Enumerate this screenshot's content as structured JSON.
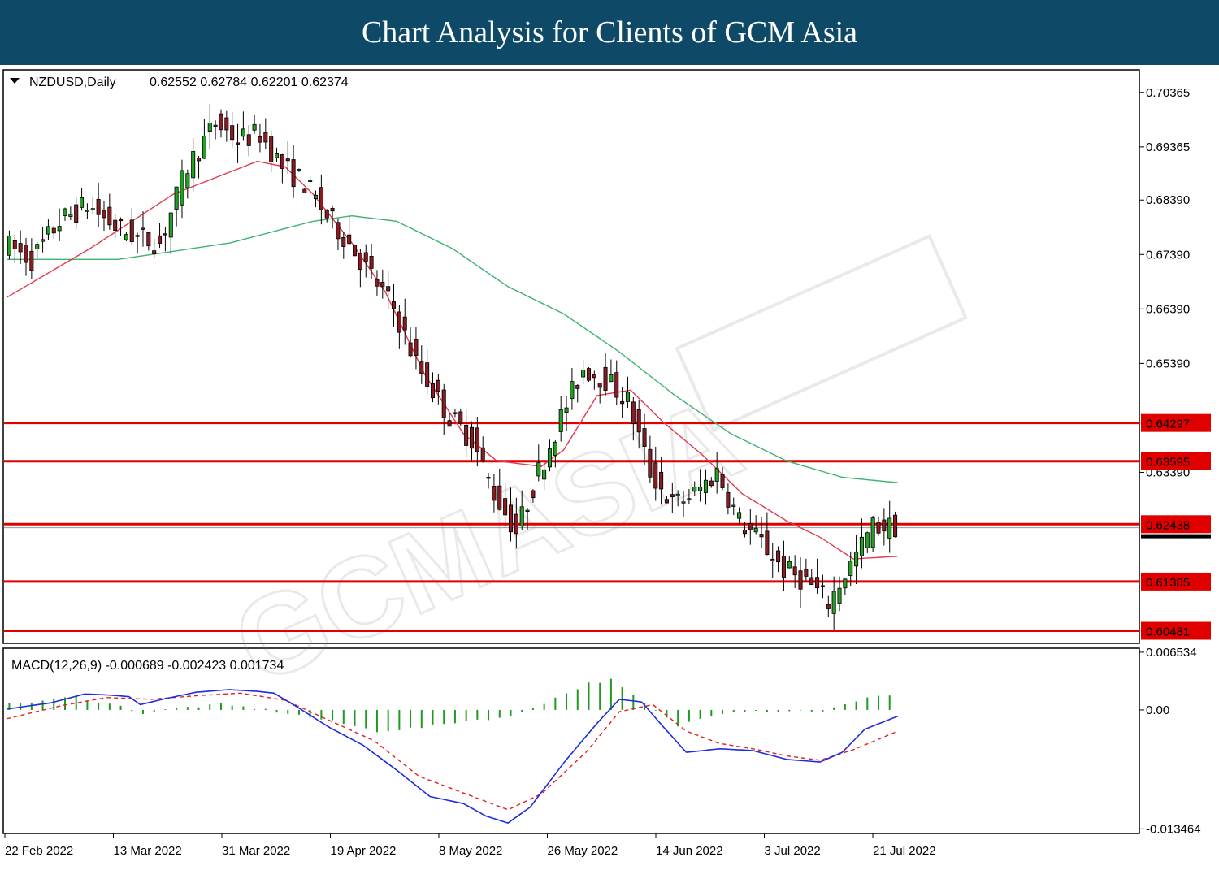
{
  "banner": {
    "title": "Chart Analysis for Clients of GCM Asia"
  },
  "colors": {
    "banner": "#0e4a68",
    "level": "#e00000",
    "bull": "#22a022",
    "bear": "#8b1b22",
    "ma_fast": "#e23a4e",
    "ma_slow": "#3cb371",
    "macd": "#1f2be0",
    "signal": "#e02020",
    "hist": "#1f9a1f"
  },
  "chart_data": [
    {
      "type": "candlestick",
      "header": {
        "symbol": "NZDUSD,Daily",
        "ohlc": "0.62552 0.62784 0.62201 0.62374"
      },
      "ylim": [
        0.6028,
        0.7075
      ],
      "y_ticks": [
        "0.70365",
        "0.69365",
        "0.68390",
        "0.67390",
        "0.66390",
        "0.65390",
        "0.63390"
      ],
      "x_ticks": [
        "22 Feb 2022",
        "13 Mar 2022",
        "31 Mar 2022",
        "19 Apr 2022",
        "8 May 2022",
        "26 May 2022",
        "14 Jun 2022",
        "3 Jul 2022",
        "21 Jul 2022"
      ],
      "levels": [
        "0.64297",
        "0.63595",
        "0.62438",
        "0.61385",
        "0.60481"
      ],
      "current_price": 0.62374,
      "indicators": [
        "moving-average-fast",
        "moving-average-slow"
      ],
      "candle_anchors": [
        [
          0,
          0.676
        ],
        [
          5,
          0.673
        ],
        [
          10,
          0.68
        ],
        [
          15,
          0.683
        ],
        [
          20,
          0.679
        ],
        [
          24,
          0.677
        ],
        [
          28,
          0.676
        ],
        [
          33,
          0.69
        ],
        [
          38,
          0.698
        ],
        [
          42,
          0.695
        ],
        [
          46,
          0.696
        ],
        [
          50,
          0.69
        ],
        [
          54,
          0.687
        ],
        [
          58,
          0.681
        ],
        [
          62,
          0.676
        ],
        [
          66,
          0.67
        ],
        [
          70,
          0.664
        ],
        [
          74,
          0.654
        ],
        [
          80,
          0.644
        ],
        [
          84,
          0.64
        ],
        [
          88,
          0.63
        ],
        [
          92,
          0.623
        ],
        [
          96,
          0.634
        ],
        [
          100,
          0.644
        ],
        [
          104,
          0.653
        ],
        [
          108,
          0.651
        ],
        [
          112,
          0.647
        ],
        [
          116,
          0.634
        ],
        [
          120,
          0.628
        ],
        [
          124,
          0.63
        ],
        [
          128,
          0.634
        ],
        [
          132,
          0.625
        ],
        [
          136,
          0.621
        ],
        [
          140,
          0.616
        ],
        [
          144,
          0.614
        ],
        [
          148,
          0.61
        ],
        [
          152,
          0.617
        ],
        [
          156,
          0.624
        ],
        [
          160,
          0.624
        ]
      ],
      "ma_fast_anchors": [
        [
          0,
          0.666
        ],
        [
          15,
          0.675
        ],
        [
          30,
          0.685
        ],
        [
          45,
          0.691
        ],
        [
          50,
          0.69
        ],
        [
          55,
          0.685
        ],
        [
          62,
          0.676
        ],
        [
          68,
          0.667
        ],
        [
          75,
          0.652
        ],
        [
          82,
          0.641
        ],
        [
          88,
          0.636
        ],
        [
          96,
          0.635
        ],
        [
          100,
          0.638
        ],
        [
          106,
          0.648
        ],
        [
          112,
          0.649
        ],
        [
          118,
          0.643
        ],
        [
          125,
          0.637
        ],
        [
          132,
          0.63
        ],
        [
          140,
          0.625
        ],
        [
          146,
          0.622
        ],
        [
          152,
          0.618
        ],
        [
          160,
          0.6185
        ]
      ],
      "ma_slow_anchors": [
        [
          0,
          0.673
        ],
        [
          20,
          0.673
        ],
        [
          40,
          0.676
        ],
        [
          55,
          0.68
        ],
        [
          62,
          0.681
        ],
        [
          70,
          0.68
        ],
        [
          80,
          0.675
        ],
        [
          90,
          0.668
        ],
        [
          100,
          0.663
        ],
        [
          110,
          0.656
        ],
        [
          120,
          0.648
        ],
        [
          130,
          0.641
        ],
        [
          140,
          0.636
        ],
        [
          150,
          0.633
        ],
        [
          160,
          0.632
        ]
      ]
    },
    {
      "type": "macd",
      "header": "MACD(12,26,9) -0.000689 -0.002423 0.001734",
      "ylim": [
        -0.0138,
        0.0068
      ],
      "y_ticks": [
        "0.006534",
        "0.00",
        "-0.013464"
      ],
      "macd_anchors": [
        [
          0,
          0.0001
        ],
        [
          8,
          0.0008
        ],
        [
          14,
          0.0018
        ],
        [
          18,
          0.0017
        ],
        [
          22,
          0.0015
        ],
        [
          24,
          0.0006
        ],
        [
          28,
          0.0012
        ],
        [
          34,
          0.002
        ],
        [
          40,
          0.0023
        ],
        [
          45,
          0.0021
        ],
        [
          48,
          0.0019
        ],
        [
          52,
          0.0004
        ],
        [
          58,
          -0.002
        ],
        [
          64,
          -0.004
        ],
        [
          70,
          -0.0068
        ],
        [
          76,
          -0.0098
        ],
        [
          82,
          -0.0106
        ],
        [
          86,
          -0.012
        ],
        [
          90,
          -0.0128
        ],
        [
          94,
          -0.011
        ],
        [
          100,
          -0.006
        ],
        [
          106,
          -0.0015
        ],
        [
          110,
          0.0012
        ],
        [
          114,
          0.0009
        ],
        [
          118,
          -0.002
        ],
        [
          122,
          -0.0048
        ],
        [
          128,
          -0.0044
        ],
        [
          134,
          -0.0046
        ],
        [
          140,
          -0.0056
        ],
        [
          146,
          -0.0059
        ],
        [
          150,
          -0.0048
        ],
        [
          154,
          -0.0022
        ],
        [
          160,
          -0.0007
        ]
      ],
      "signal_anchors": [
        [
          0,
          -0.001
        ],
        [
          10,
          0.0005
        ],
        [
          18,
          0.0014
        ],
        [
          26,
          0.0012
        ],
        [
          34,
          0.0016
        ],
        [
          42,
          0.0019
        ],
        [
          50,
          0.0011
        ],
        [
          58,
          -0.0012
        ],
        [
          66,
          -0.0035
        ],
        [
          74,
          -0.0075
        ],
        [
          82,
          -0.0094
        ],
        [
          90,
          -0.0113
        ],
        [
          96,
          -0.0095
        ],
        [
          104,
          -0.0048
        ],
        [
          110,
          -0.0002
        ],
        [
          116,
          0.0006
        ],
        [
          122,
          -0.0024
        ],
        [
          128,
          -0.0038
        ],
        [
          134,
          -0.0044
        ],
        [
          140,
          -0.0052
        ],
        [
          146,
          -0.0057
        ],
        [
          152,
          -0.0045
        ],
        [
          160,
          -0.0024
        ]
      ],
      "hist_anchors": [
        [
          0,
          0.0006
        ],
        [
          12,
          0.0015
        ],
        [
          20,
          0.0004
        ],
        [
          24,
          -0.0004
        ],
        [
          30,
          0.0002
        ],
        [
          38,
          0.0006
        ],
        [
          44,
          0.0002
        ],
        [
          52,
          -0.0006
        ],
        [
          58,
          -0.0013
        ],
        [
          66,
          -0.0024
        ],
        [
          74,
          -0.002
        ],
        [
          82,
          -0.0012
        ],
        [
          90,
          -0.0008
        ],
        [
          96,
          0.0008
        ],
        [
          104,
          0.003
        ],
        [
          108,
          0.0034
        ],
        [
          114,
          0.0007
        ],
        [
          120,
          -0.0018
        ],
        [
          126,
          -0.0006
        ],
        [
          130,
          -0.0001
        ],
        [
          136,
          -0.0001
        ],
        [
          146,
          -0.0001
        ],
        [
          152,
          0.0009
        ],
        [
          156,
          0.0017
        ],
        [
          160,
          0.0017
        ]
      ]
    }
  ]
}
